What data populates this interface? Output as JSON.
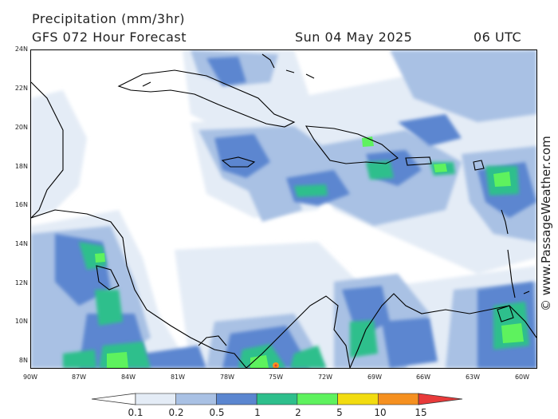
{
  "header": {
    "title": "Precipitation (mm/3hr)",
    "subtitle": "GFS 072 Hour Forecast",
    "date": "Sun 04 May 2025",
    "time": "06 UTC"
  },
  "credit": "© www.PassageWeather.com",
  "axes": {
    "lat_labels": [
      "24N",
      "22N",
      "20N",
      "18N",
      "16N",
      "14N",
      "12N",
      "10N",
      "8N"
    ],
    "lon_labels": [
      "90W",
      "87W",
      "84W",
      "81W",
      "78W",
      "75W",
      "72W",
      "69W",
      "66W",
      "63W",
      "60W"
    ]
  },
  "legend": {
    "labels": [
      "0.1",
      "0.2",
      "0.5",
      "1",
      "2",
      "5",
      "10",
      "15"
    ],
    "colors": [
      "#ffffff",
      "#e4ecf6",
      "#a9c1e4",
      "#5b86d0",
      "#2ebf8c",
      "#5ef25e",
      "#f2dc10",
      "#f59020",
      "#e83a3a"
    ]
  },
  "palette": {
    "light": "#e4ecf6",
    "pale": "#a9c1e4",
    "mid": "#5b86d0",
    "teal": "#2ebf8c",
    "green": "#5ef25e",
    "orange": "#f59020"
  }
}
